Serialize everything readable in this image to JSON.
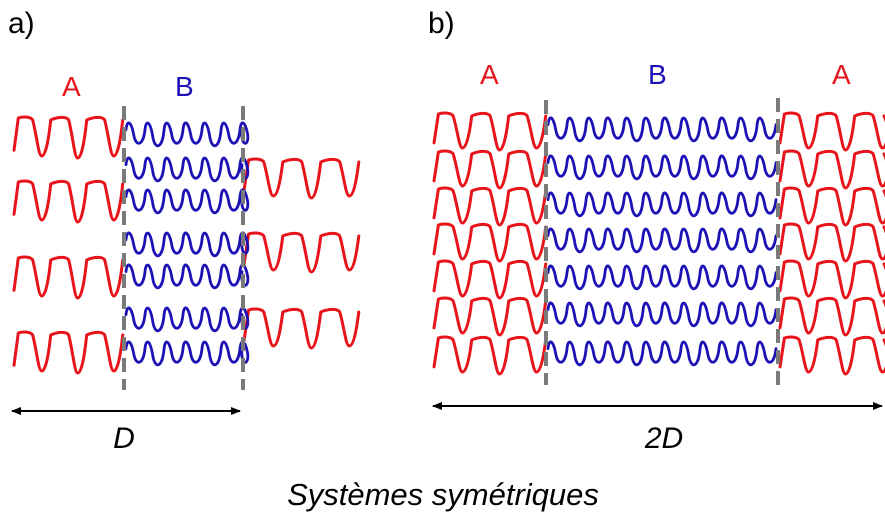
{
  "panels": [
    {
      "id": "a",
      "label": "a)",
      "block_labels": [
        "A",
        "B"
      ],
      "dimension": "D"
    },
    {
      "id": "b",
      "label": "b)",
      "block_labels": [
        "A",
        "B",
        "A"
      ],
      "dimension": "2D"
    }
  ],
  "caption": "Systèmes symétriques",
  "colors": {
    "A": "#e8141b",
    "B": "#1c12b5",
    "interface": "#7a7a7a",
    "text": "#000000"
  }
}
